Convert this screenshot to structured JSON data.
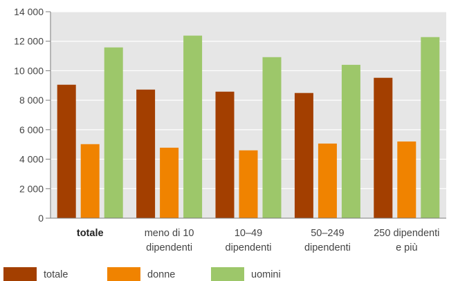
{
  "chart_data": {
    "type": "bar",
    "categories": [
      {
        "lines": [
          "totale"
        ],
        "bold": true
      },
      {
        "lines": [
          "meno di 10",
          "dipendenti"
        ],
        "bold": false
      },
      {
        "lines": [
          "10–49",
          "dipendenti"
        ],
        "bold": false
      },
      {
        "lines": [
          "50–249",
          "dipendenti"
        ],
        "bold": false
      },
      {
        "lines": [
          "250 dipendenti",
          "e più"
        ],
        "bold": false
      }
    ],
    "series": [
      {
        "name": "totale",
        "color": "#a33f00",
        "values": [
          9050,
          8720,
          8580,
          8490,
          9520
        ]
      },
      {
        "name": "donne",
        "color": "#f08300",
        "values": [
          5020,
          4780,
          4600,
          5060,
          5200
        ]
      },
      {
        "name": "uomini",
        "color": "#9dc76a",
        "values": [
          11580,
          12380,
          10920,
          10400,
          12280
        ]
      }
    ],
    "yticks": [
      {
        "value": 0,
        "label": "0"
      },
      {
        "value": 2000,
        "label": "2 000"
      },
      {
        "value": 4000,
        "label": "4 000"
      },
      {
        "value": 6000,
        "label": "6 000"
      },
      {
        "value": 8000,
        "label": "8 000"
      },
      {
        "value": 10000,
        "label": "10 000"
      },
      {
        "value": 12000,
        "label": "12 000"
      },
      {
        "value": 14000,
        "label": "14 000"
      }
    ],
    "ylim": [
      0,
      14000
    ],
    "grid": true,
    "plot_background": "#e6e6e6",
    "legend_position": "bottom"
  }
}
